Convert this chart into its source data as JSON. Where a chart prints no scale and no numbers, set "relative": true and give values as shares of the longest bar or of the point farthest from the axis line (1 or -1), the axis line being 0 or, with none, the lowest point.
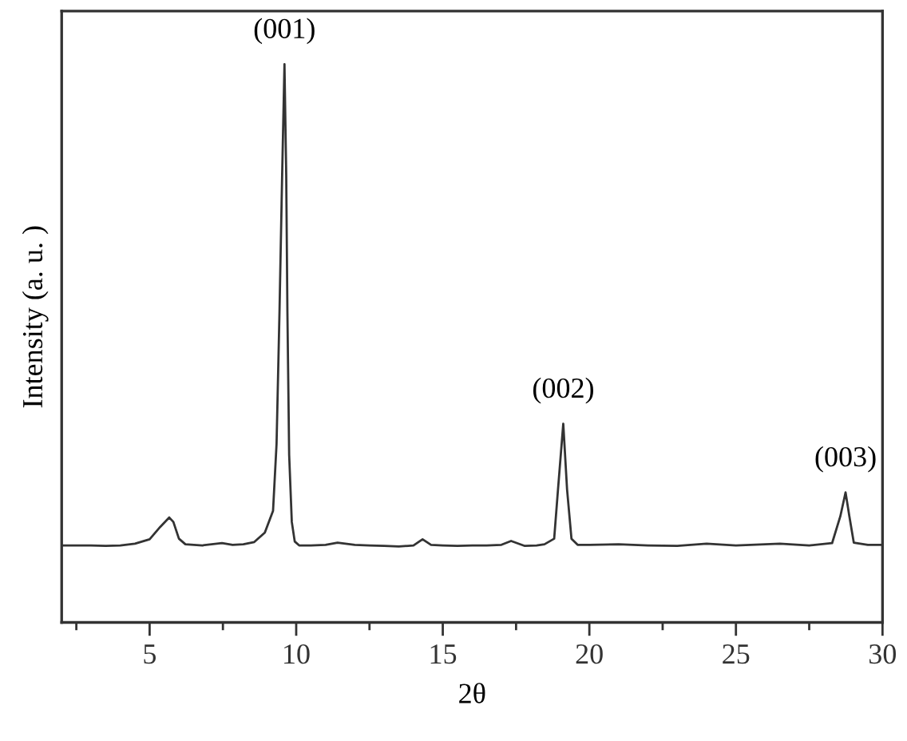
{
  "chart_data": {
    "type": "line",
    "xlabel": "2θ",
    "ylabel": "Intensity (a. u. )",
    "relative": true,
    "tick_labels": "x",
    "xlim": [
      2,
      30
    ],
    "xticks": [
      {
        "value": 2.5,
        "label": null
      },
      5,
      {
        "value": 7.5,
        "label": null
      },
      10,
      {
        "value": 12.5,
        "label": null
      },
      15,
      {
        "value": 17.5,
        "label": null
      },
      20,
      {
        "value": 22.5,
        "label": null
      },
      25,
      {
        "value": 27.5,
        "label": null
      },
      30
    ],
    "series": [
      {
        "color": "#333333",
        "x": [
          2.0,
          3.0,
          3.5,
          4.0,
          4.5,
          5.0,
          5.36,
          5.67,
          5.81,
          6.0,
          6.22,
          6.8,
          7.47,
          7.83,
          8.2,
          8.57,
          8.93,
          9.21,
          9.33,
          9.43,
          9.52,
          9.6,
          9.66,
          9.7,
          9.76,
          9.85,
          9.95,
          10.1,
          10.5,
          11.0,
          11.41,
          12.0,
          12.5,
          13.0,
          13.5,
          14.0,
          14.31,
          14.6,
          15.0,
          15.5,
          16.0,
          16.5,
          17.0,
          17.33,
          17.8,
          18.2,
          18.47,
          18.8,
          18.93,
          19.11,
          19.24,
          19.39,
          19.6,
          20.0,
          21.0,
          22.0,
          23.0,
          24.0,
          25.0,
          26.0,
          26.5,
          27.5,
          28.28,
          28.56,
          28.74,
          28.87,
          29.02,
          29.5,
          30.0
        ],
        "values": [
          0.138,
          0.138,
          0.137,
          0.138,
          0.141,
          0.149,
          0.171,
          0.188,
          0.18,
          0.15,
          0.14,
          0.138,
          0.142,
          0.139,
          0.14,
          0.144,
          0.161,
          0.2,
          0.32,
          0.556,
          0.8,
          1.0,
          0.8,
          0.556,
          0.3,
          0.18,
          0.145,
          0.138,
          0.138,
          0.139,
          0.143,
          0.139,
          0.138,
          0.137,
          0.136,
          0.138,
          0.149,
          0.139,
          0.138,
          0.137,
          0.138,
          0.138,
          0.139,
          0.146,
          0.137,
          0.138,
          0.14,
          0.15,
          0.238,
          0.356,
          0.238,
          0.15,
          0.139,
          0.139,
          0.14,
          0.138,
          0.137,
          0.141,
          0.138,
          0.14,
          0.141,
          0.138,
          0.142,
          0.19,
          0.233,
          0.19,
          0.143,
          0.139,
          0.139
        ]
      }
    ],
    "annotations": [
      {
        "text": "(001)",
        "x": 9.6,
        "y": 1.0
      },
      {
        "text": "(002)",
        "x": 19.11,
        "y": 0.356
      },
      {
        "text": "(003)",
        "x": 28.74,
        "y": 0.233
      }
    ]
  }
}
